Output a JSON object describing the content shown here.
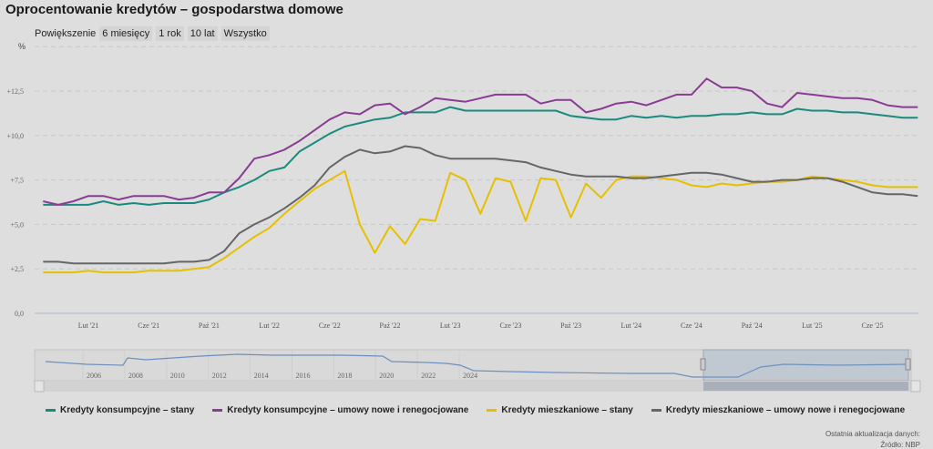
{
  "title": "Oprocentowanie kredytów – gospodarstwa domowe",
  "zoom": {
    "label": "Powiększenie",
    "buttons": [
      "6 miesięcy",
      "1 rok",
      "10 lat",
      "Wszystko"
    ]
  },
  "footer": {
    "updated": "Ostatnia aktualizacja danych:",
    "source": "Źródło: NBP"
  },
  "chart_data": {
    "type": "line",
    "title": "Oprocentowanie kredytów – gospodarstwa domowe",
    "ylabel": "%",
    "ylim": [
      0,
      15
    ],
    "yticks": [
      "0,0",
      "2,5",
      "5,0",
      "7,5",
      "10,0",
      "12,5"
    ],
    "x_range": [
      "2020-11",
      "2025-09"
    ],
    "x_frequency": "monthly",
    "xticks": [
      "Lut '21",
      "Cze '21",
      "Paź '21",
      "Lut '22",
      "Cze '22",
      "Paź '22",
      "Lut '23",
      "Cze '23",
      "Paź '23",
      "Lut '24",
      "Cze '24",
      "Paź '24",
      "Lut '25",
      "Cze '25"
    ],
    "grid": true,
    "legend": "bottom",
    "series": [
      {
        "name": "Kredyty konsumpcyjne – stany",
        "color": "#1a8a7e",
        "values": [
          6.1,
          6.1,
          6.1,
          6.1,
          6.3,
          6.1,
          6.2,
          6.1,
          6.2,
          6.2,
          6.2,
          6.4,
          6.8,
          7.1,
          7.5,
          8.0,
          8.2,
          9.1,
          9.6,
          10.1,
          10.5,
          10.7,
          10.9,
          11.0,
          11.3,
          11.3,
          11.3,
          11.6,
          11.4,
          11.4,
          11.4,
          11.4,
          11.4,
          11.4,
          11.4,
          11.1,
          11.0,
          10.9,
          10.9,
          11.1,
          11.0,
          11.1,
          11.0,
          11.1,
          11.1,
          11.2,
          11.2,
          11.3,
          11.2,
          11.2,
          11.5,
          11.4,
          11.4,
          11.3,
          11.3,
          11.2,
          11.1,
          11.0,
          11.0
        ]
      },
      {
        "name": "Kredyty konsumpcyjne – umowy nowe i renegocjowane",
        "color": "#8a3b94",
        "values": [
          6.3,
          6.1,
          6.3,
          6.6,
          6.6,
          6.4,
          6.6,
          6.6,
          6.6,
          6.4,
          6.5,
          6.8,
          6.8,
          7.6,
          8.7,
          8.9,
          9.2,
          9.7,
          10.3,
          10.9,
          11.3,
          11.2,
          11.7,
          11.8,
          11.2,
          11.6,
          12.1,
          12.0,
          11.9,
          12.1,
          12.3,
          12.3,
          12.3,
          11.8,
          12.0,
          12.0,
          11.3,
          11.5,
          11.8,
          11.9,
          11.7,
          12.0,
          12.3,
          12.3,
          13.2,
          12.7,
          12.7,
          12.5,
          11.8,
          11.6,
          12.4,
          12.3,
          12.2,
          12.1,
          12.1,
          12.0,
          11.7,
          11.6,
          11.6
        ]
      },
      {
        "name": "Kredyty mieszkaniowe – stany",
        "color": "#e6c000",
        "values": [
          2.3,
          2.3,
          2.3,
          2.4,
          2.3,
          2.3,
          2.3,
          2.4,
          2.4,
          2.4,
          2.5,
          2.6,
          3.1,
          3.7,
          4.3,
          4.8,
          5.6,
          6.3,
          7.0,
          7.5,
          8.0,
          5.0,
          3.4,
          4.9,
          3.9,
          5.3,
          5.2,
          7.9,
          7.5,
          5.6,
          7.6,
          7.4,
          5.2,
          7.6,
          7.5,
          5.4,
          7.3,
          6.5,
          7.5,
          7.7,
          7.7,
          7.6,
          7.5,
          7.2,
          7.1,
          7.3,
          7.2,
          7.3,
          7.4,
          7.4,
          7.5,
          7.7,
          7.6,
          7.5,
          7.4,
          7.2,
          7.1,
          7.1,
          7.1
        ]
      },
      {
        "name": "Kredyty mieszkaniowe – umowy nowe i renegocjowane",
        "color": "#666666",
        "values": [
          2.9,
          2.9,
          2.8,
          2.8,
          2.8,
          2.8,
          2.8,
          2.8,
          2.8,
          2.9,
          2.9,
          3.0,
          3.5,
          4.5,
          5.0,
          5.4,
          5.9,
          6.5,
          7.2,
          8.2,
          8.8,
          9.2,
          9.0,
          9.1,
          9.4,
          9.3,
          8.9,
          8.7,
          8.7,
          8.7,
          8.7,
          8.6,
          8.5,
          8.2,
          8.0,
          7.8,
          7.7,
          7.7,
          7.7,
          7.6,
          7.6,
          7.7,
          7.8,
          7.9,
          7.9,
          7.8,
          7.6,
          7.4,
          7.4,
          7.5,
          7.5,
          7.6,
          7.6,
          7.4,
          7.1,
          6.8,
          6.7,
          6.7,
          6.6
        ]
      }
    ],
    "navigator": {
      "xticks": [
        "2006",
        "2008",
        "2010",
        "2012",
        "2014",
        "2016",
        "2018",
        "2020",
        "2022",
        "2024"
      ],
      "selected_range": [
        "2020-11",
        "2025-09"
      ]
    }
  }
}
